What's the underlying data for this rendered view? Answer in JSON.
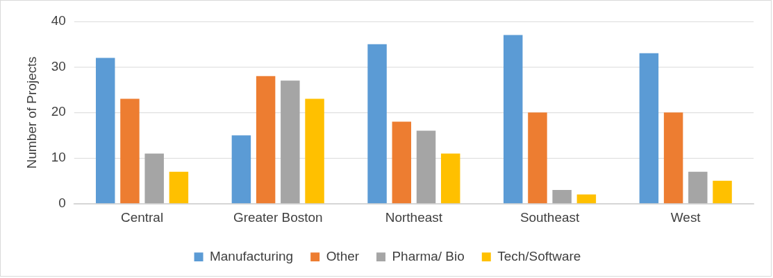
{
  "chart_data": {
    "type": "bar",
    "ylabel": "Number of Projects",
    "categories": [
      "Central",
      "Greater Boston",
      "Northeast",
      "Southeast",
      "West"
    ],
    "series": [
      {
        "name": "Manufacturing",
        "color": "#5b9bd5",
        "values": [
          32,
          15,
          35,
          37,
          33
        ]
      },
      {
        "name": "Other",
        "color": "#ed7d31",
        "values": [
          23,
          28,
          18,
          20,
          20
        ]
      },
      {
        "name": "Pharma/ Bio",
        "color": "#a5a5a5",
        "values": [
          11,
          27,
          16,
          3,
          7
        ]
      },
      {
        "name": "Tech/Software",
        "color": "#ffc000",
        "values": [
          7,
          23,
          11,
          2,
          5
        ]
      }
    ],
    "ylim": [
      0,
      40
    ],
    "yticks": [
      0,
      10,
      20,
      30,
      40
    ],
    "grid": "y",
    "legend": "bottom"
  }
}
